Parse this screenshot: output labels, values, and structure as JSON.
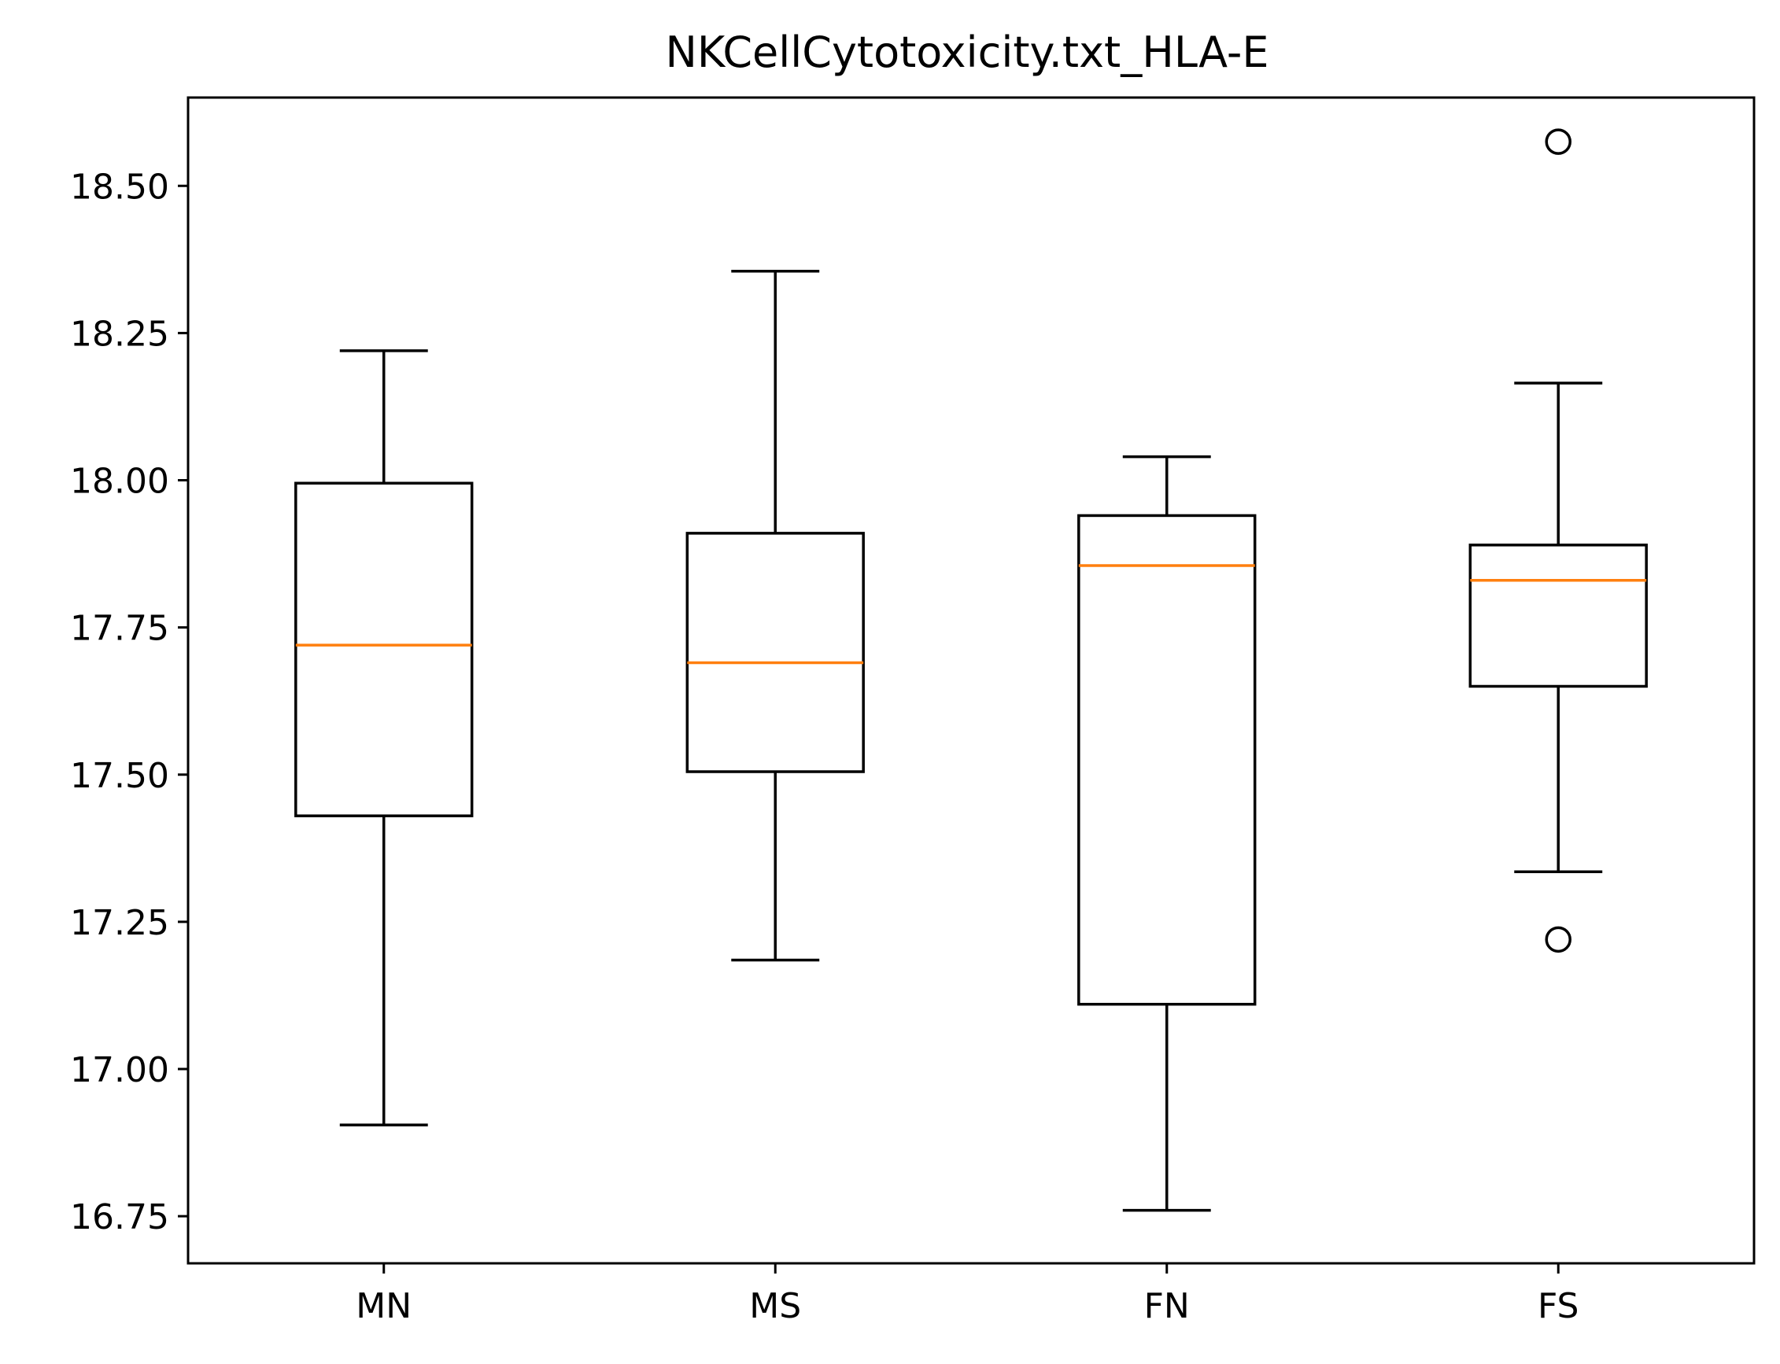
{
  "chart_data": {
    "type": "box",
    "title": "NKCellCytotoxicity.txt_HLA-E",
    "xlabel": "",
    "ylabel": "",
    "ylim": [
      16.67,
      18.65
    ],
    "yticks": [
      16.75,
      17.0,
      17.25,
      17.5,
      17.75,
      18.0,
      18.25,
      18.5
    ],
    "ytick_labels": [
      "16.75",
      "17.00",
      "17.25",
      "17.50",
      "17.75",
      "18.00",
      "18.25",
      "18.50"
    ],
    "categories": [
      "MN",
      "MS",
      "FN",
      "FS"
    ],
    "boxes": [
      {
        "category": "MN",
        "whisker_low": 16.905,
        "q1": 17.43,
        "median": 17.72,
        "q3": 17.995,
        "whisker_high": 18.22,
        "outliers": []
      },
      {
        "category": "MS",
        "whisker_low": 17.185,
        "q1": 17.505,
        "median": 17.69,
        "q3": 17.91,
        "whisker_high": 18.355,
        "outliers": []
      },
      {
        "category": "FN",
        "whisker_low": 16.76,
        "q1": 17.11,
        "median": 17.855,
        "q3": 17.94,
        "whisker_high": 18.04,
        "outliers": []
      },
      {
        "category": "FS",
        "whisker_low": 17.335,
        "q1": 17.65,
        "median": 17.83,
        "q3": 17.89,
        "whisker_high": 18.165,
        "outliers": [
          18.575,
          17.22
        ]
      }
    ],
    "grid": false,
    "colors": {
      "box": "#000000",
      "median": "#ff7f0e",
      "outlier": "#000000"
    }
  }
}
